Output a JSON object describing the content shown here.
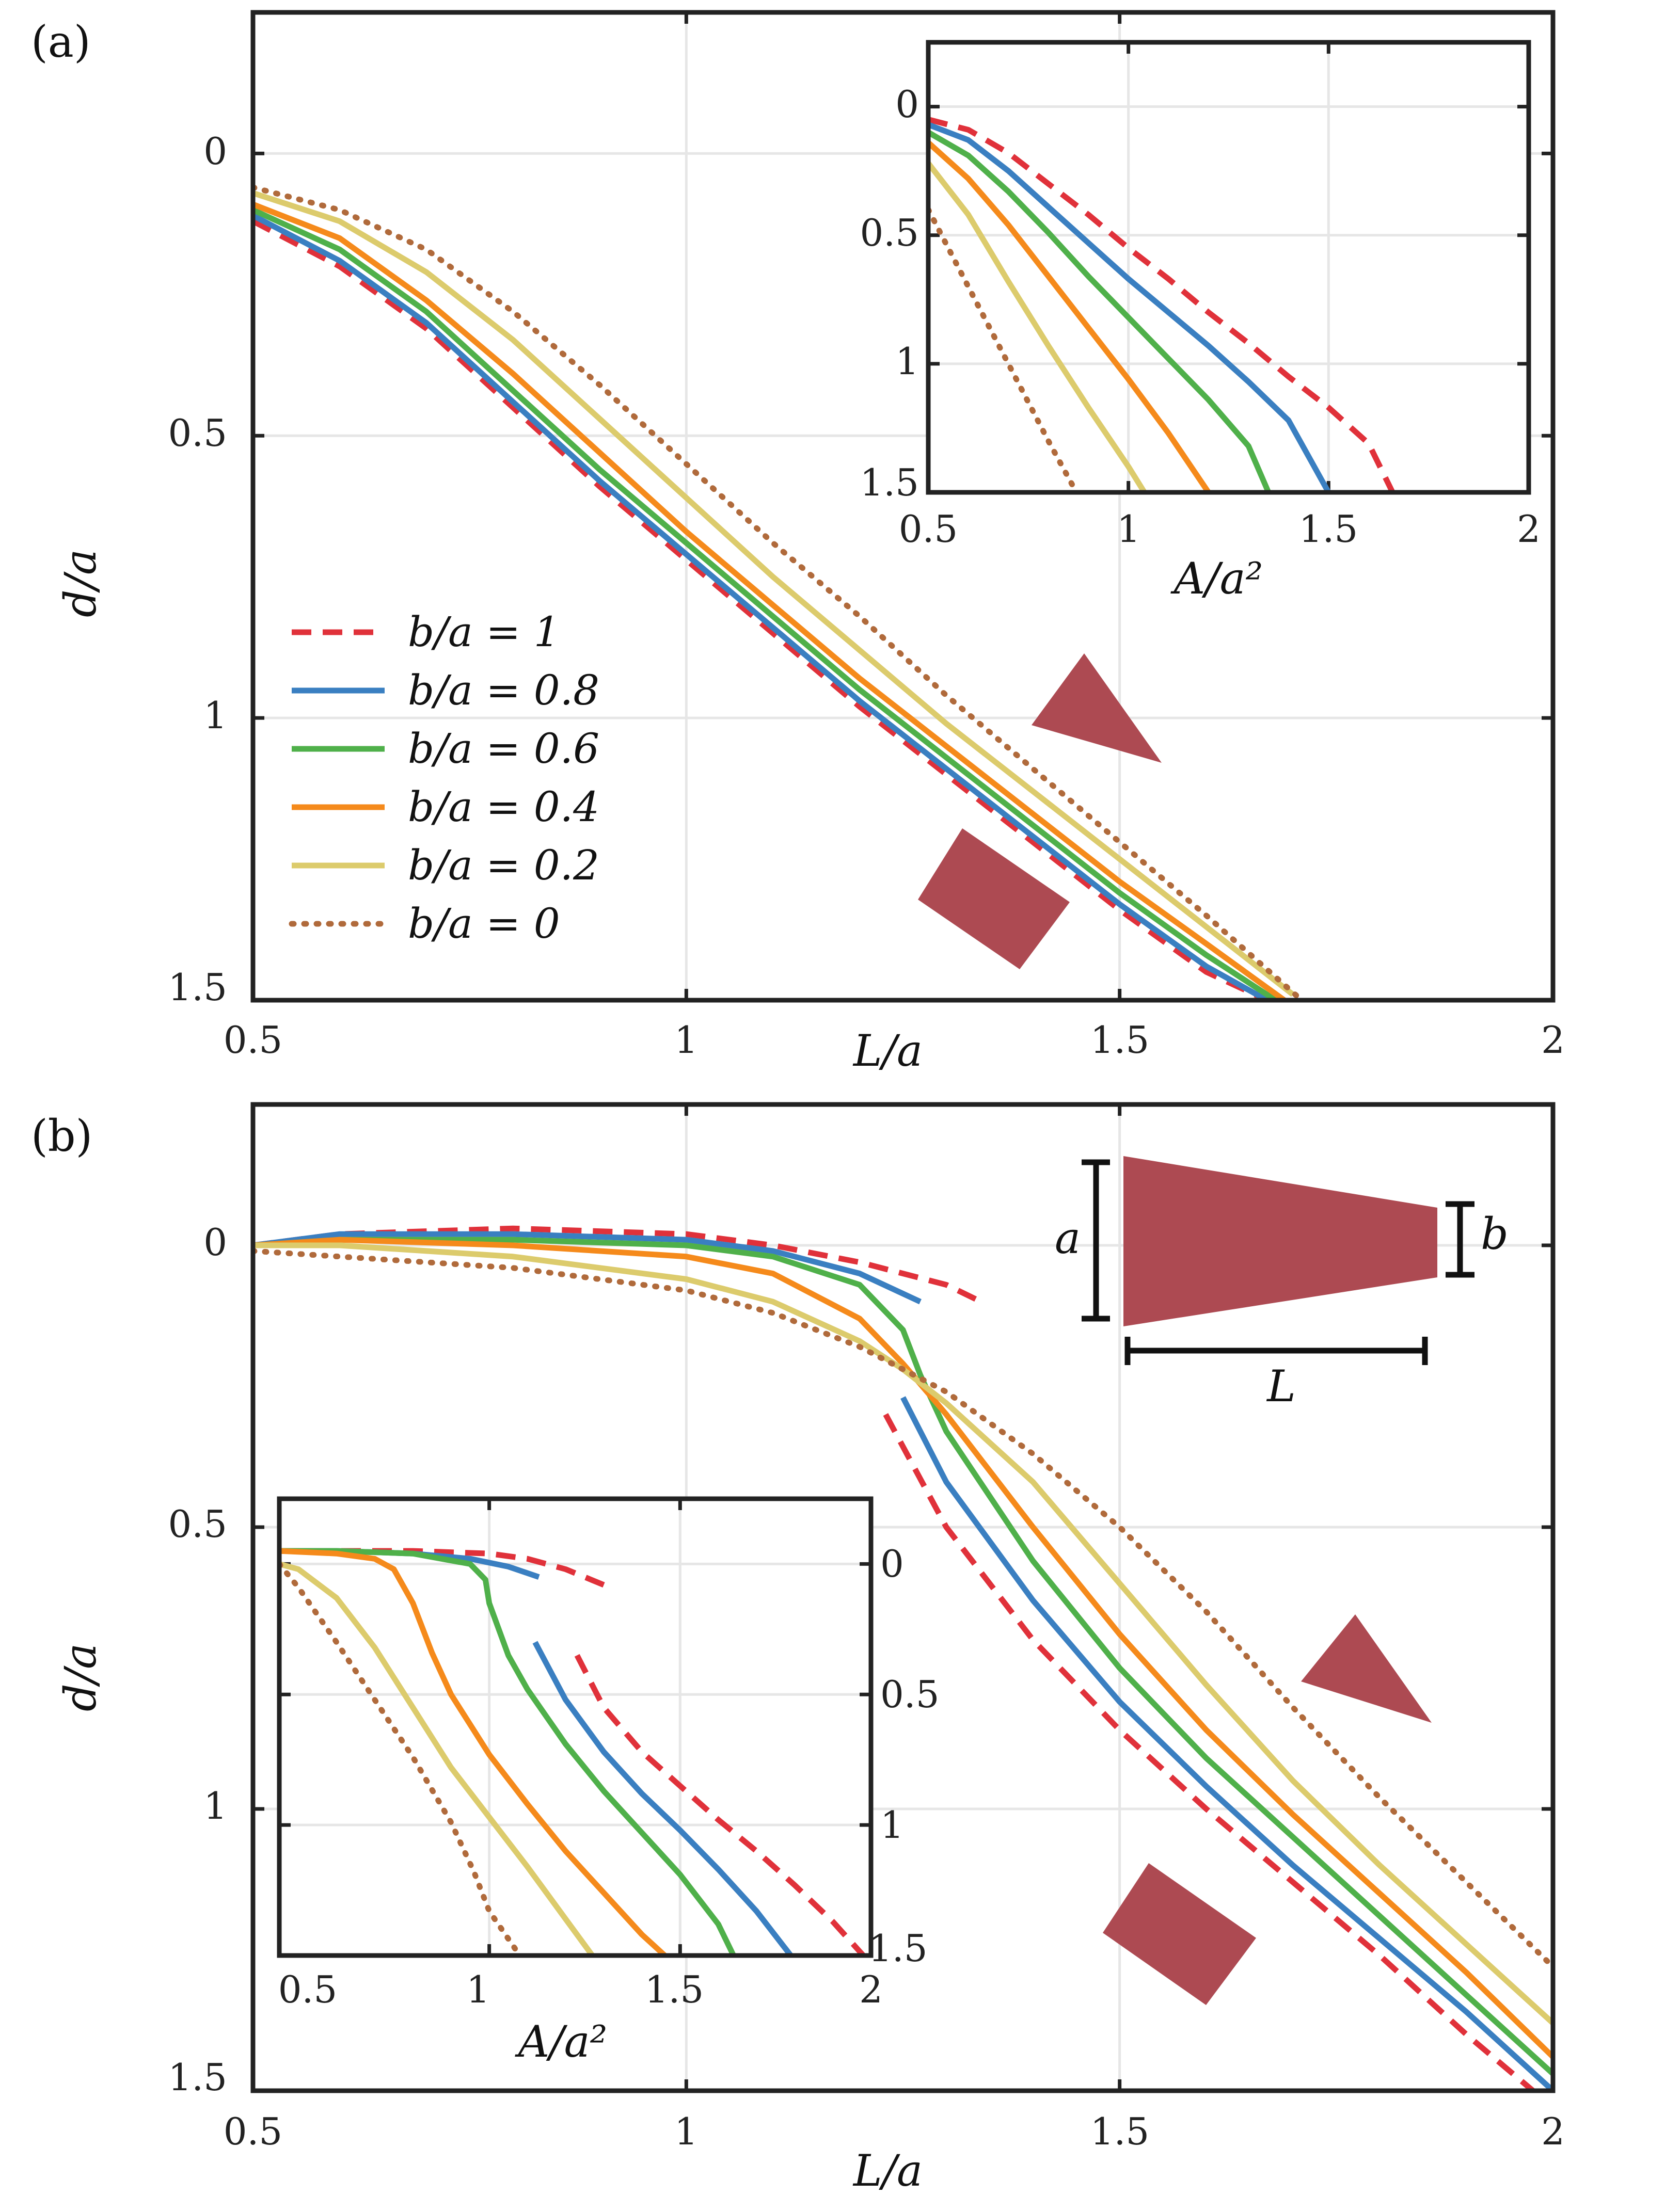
{
  "colors": {
    "b1": "#e0313a",
    "b08": "#3a7fc1",
    "b06": "#4fb04a",
    "b04": "#f58a1b",
    "b02": "#dccb6c",
    "b0": "#b06a3b",
    "shape": "#ad4a52",
    "axes": "#222222",
    "grid": "#e6e6e6"
  },
  "series_info": [
    {
      "key": "b1",
      "label": "b/a = 1",
      "style": "dashed"
    },
    {
      "key": "b08",
      "label": "b/a = 0.8",
      "style": "solid"
    },
    {
      "key": "b06",
      "label": "b/a = 0.6",
      "style": "solid"
    },
    {
      "key": "b04",
      "label": "b/a = 0.4",
      "style": "solid"
    },
    {
      "key": "b02",
      "label": "b/a = 0.2",
      "style": "solid"
    },
    {
      "key": "b0",
      "label": "b/a = 0",
      "style": "dotted"
    }
  ],
  "chart_data": [
    {
      "id": "a",
      "panel_label": "(a)",
      "type": "line",
      "xlabel": "L/a",
      "ylabel": "d/a",
      "xlim": [
        0.5,
        2
      ],
      "ylim": [
        1.5,
        -0.25
      ],
      "y_inverted": true,
      "xticks": [
        "0.5",
        "1",
        "1.5",
        "2"
      ],
      "yticks": [
        "0",
        "0.5",
        "1",
        "1.5"
      ],
      "legend_position": "lower-left",
      "series": [
        {
          "key": "b1",
          "x": [
            0.5,
            0.6,
            0.7,
            0.8,
            0.9,
            1.0,
            1.1,
            1.2,
            1.3,
            1.4,
            1.5,
            1.6,
            1.67
          ],
          "y": [
            0.12,
            0.2,
            0.31,
            0.45,
            0.59,
            0.72,
            0.85,
            0.98,
            1.1,
            1.22,
            1.34,
            1.45,
            1.5
          ]
        },
        {
          "key": "b08",
          "x": [
            0.5,
            0.6,
            0.7,
            0.8,
            0.9,
            1.0,
            1.1,
            1.2,
            1.3,
            1.4,
            1.5,
            1.6,
            1.67
          ],
          "y": [
            0.11,
            0.19,
            0.3,
            0.44,
            0.58,
            0.71,
            0.84,
            0.97,
            1.09,
            1.21,
            1.33,
            1.44,
            1.5
          ]
        },
        {
          "key": "b06",
          "x": [
            0.5,
            0.6,
            0.7,
            0.8,
            0.9,
            1.0,
            1.1,
            1.2,
            1.3,
            1.4,
            1.5,
            1.6,
            1.68
          ],
          "y": [
            0.1,
            0.17,
            0.28,
            0.42,
            0.56,
            0.69,
            0.82,
            0.95,
            1.07,
            1.19,
            1.31,
            1.42,
            1.5
          ]
        },
        {
          "key": "b04",
          "x": [
            0.5,
            0.6,
            0.7,
            0.8,
            0.9,
            1.0,
            1.1,
            1.2,
            1.3,
            1.4,
            1.5,
            1.6,
            1.69
          ],
          "y": [
            0.09,
            0.15,
            0.26,
            0.39,
            0.53,
            0.67,
            0.8,
            0.93,
            1.05,
            1.17,
            1.29,
            1.4,
            1.5
          ]
        },
        {
          "key": "b02",
          "x": [
            0.5,
            0.6,
            0.7,
            0.8,
            0.9,
            1.0,
            1.1,
            1.2,
            1.3,
            1.4,
            1.5,
            1.6,
            1.7
          ],
          "y": [
            0.07,
            0.12,
            0.21,
            0.33,
            0.47,
            0.61,
            0.75,
            0.88,
            1.01,
            1.13,
            1.25,
            1.37,
            1.49
          ]
        },
        {
          "key": "b0",
          "x": [
            0.5,
            0.6,
            0.7,
            0.8,
            0.9,
            1.0,
            1.1,
            1.2,
            1.3,
            1.4,
            1.5,
            1.6,
            1.71
          ],
          "y": [
            0.06,
            0.1,
            0.17,
            0.28,
            0.41,
            0.55,
            0.69,
            0.82,
            0.96,
            1.09,
            1.22,
            1.35,
            1.5
          ]
        }
      ],
      "inset": {
        "type": "line",
        "xlabel": "A/a²",
        "xlim": [
          0.5,
          2
        ],
        "ylim": [
          1.5,
          -0.25
        ],
        "y_inverted": true,
        "xticks": [
          "0.5",
          "1",
          "1.5",
          "2"
        ],
        "yticks": [
          "0",
          "0.5",
          "1",
          "1.5"
        ],
        "series": [
          {
            "key": "b1",
            "x": [
              0.5,
              0.6,
              0.7,
              0.8,
              0.9,
              1.0,
              1.1,
              1.2,
              1.3,
              1.4,
              1.5,
              1.6,
              1.66
            ],
            "y": [
              0.05,
              0.09,
              0.18,
              0.3,
              0.42,
              0.55,
              0.67,
              0.8,
              0.92,
              1.05,
              1.17,
              1.31,
              1.5
            ]
          },
          {
            "key": "b08",
            "x": [
              0.5,
              0.6,
              0.7,
              0.8,
              0.9,
              1.0,
              1.1,
              1.2,
              1.3,
              1.4,
              1.5
            ],
            "y": [
              0.07,
              0.13,
              0.25,
              0.39,
              0.53,
              0.67,
              0.8,
              0.93,
              1.07,
              1.22,
              1.5
            ]
          },
          {
            "key": "b06",
            "x": [
              0.5,
              0.6,
              0.7,
              0.8,
              0.9,
              1.0,
              1.1,
              1.2,
              1.3,
              1.35
            ],
            "y": [
              0.1,
              0.19,
              0.33,
              0.49,
              0.66,
              0.82,
              0.98,
              1.14,
              1.32,
              1.5
            ]
          },
          {
            "key": "b04",
            "x": [
              0.5,
              0.6,
              0.7,
              0.8,
              0.9,
              1.0,
              1.1,
              1.2
            ],
            "y": [
              0.14,
              0.28,
              0.46,
              0.66,
              0.86,
              1.06,
              1.27,
              1.5
            ]
          },
          {
            "key": "b02",
            "x": [
              0.5,
              0.6,
              0.7,
              0.8,
              0.9,
              1.0,
              1.04
            ],
            "y": [
              0.22,
              0.42,
              0.68,
              0.93,
              1.17,
              1.4,
              1.5
            ]
          },
          {
            "key": "b0",
            "x": [
              0.5,
              0.6,
              0.7,
              0.8,
              0.87
            ],
            "y": [
              0.4,
              0.7,
              1.0,
              1.3,
              1.5
            ]
          }
        ]
      }
    },
    {
      "id": "b",
      "panel_label": "(b)",
      "type": "line",
      "xlabel": "L/a",
      "ylabel": "d/a",
      "xlim": [
        0.5,
        2
      ],
      "ylim": [
        1.5,
        -0.25
      ],
      "y_inverted": true,
      "xticks": [
        "0.5",
        "1",
        "1.5",
        "2"
      ],
      "yticks": [
        "0",
        "0.5",
        "1",
        "1.5"
      ],
      "schematic_labels": {
        "a": "a",
        "b": "b",
        "L": "L"
      },
      "series": [
        {
          "key": "b1",
          "branches": [
            {
              "x": [
                0.5,
                0.6,
                0.8,
                1.0,
                1.1,
                1.2,
                1.3,
                1.34
              ],
              "y": [
                0.0,
                -0.02,
                -0.03,
                -0.02,
                0.0,
                0.03,
                0.07,
                0.1
              ]
            },
            {
              "x": [
                1.23,
                1.3,
                1.4,
                1.5,
                1.6,
                1.7,
                1.8,
                1.9,
                2.0
              ],
              "y": [
                0.3,
                0.5,
                0.7,
                0.86,
                1.0,
                1.13,
                1.26,
                1.4,
                1.53
              ]
            }
          ]
        },
        {
          "key": "b08",
          "branches": [
            {
              "x": [
                0.5,
                0.6,
                0.8,
                1.0,
                1.1,
                1.2,
                1.27
              ],
              "y": [
                0.0,
                -0.02,
                -0.02,
                -0.01,
                0.01,
                0.05,
                0.1
              ]
            },
            {
              "x": [
                1.25,
                1.3,
                1.4,
                1.5,
                1.6,
                1.7,
                1.8,
                1.9,
                2.0
              ],
              "y": [
                0.27,
                0.42,
                0.63,
                0.81,
                0.96,
                1.1,
                1.23,
                1.36,
                1.5
              ]
            }
          ]
        },
        {
          "key": "b06",
          "x": [
            0.5,
            0.6,
            0.8,
            1.0,
            1.1,
            1.2,
            1.25,
            1.27,
            1.3,
            1.4,
            1.5,
            1.6,
            1.7,
            1.8,
            1.9,
            2.0
          ],
          "y": [
            0.0,
            -0.01,
            -0.01,
            0.0,
            0.02,
            0.07,
            0.15,
            0.23,
            0.33,
            0.56,
            0.75,
            0.91,
            1.05,
            1.19,
            1.33,
            1.47
          ]
        },
        {
          "key": "b04",
          "x": [
            0.5,
            0.6,
            0.8,
            1.0,
            1.1,
            1.2,
            1.25,
            1.3,
            1.4,
            1.5,
            1.6,
            1.7,
            1.8,
            1.9,
            2.0
          ],
          "y": [
            0.0,
            -0.01,
            0.0,
            0.02,
            0.05,
            0.13,
            0.21,
            0.3,
            0.5,
            0.69,
            0.86,
            1.01,
            1.15,
            1.29,
            1.44
          ]
        },
        {
          "key": "b02",
          "x": [
            0.5,
            0.6,
            0.8,
            1.0,
            1.1,
            1.2,
            1.25,
            1.3,
            1.4,
            1.5,
            1.6,
            1.7,
            1.8,
            1.9,
            2.0
          ],
          "y": [
            0.0,
            0.0,
            0.02,
            0.06,
            0.1,
            0.17,
            0.22,
            0.28,
            0.42,
            0.6,
            0.78,
            0.95,
            1.1,
            1.24,
            1.38
          ]
        },
        {
          "key": "b0",
          "x": [
            0.5,
            0.6,
            0.8,
            1.0,
            1.1,
            1.2,
            1.3,
            1.4,
            1.5,
            1.6,
            1.7,
            1.8,
            1.9,
            2.0
          ],
          "y": [
            0.01,
            0.02,
            0.04,
            0.08,
            0.12,
            0.18,
            0.26,
            0.37,
            0.5,
            0.65,
            0.82,
            0.98,
            1.13,
            1.28
          ]
        }
      ],
      "inset": {
        "type": "line",
        "xlabel": "A/a²",
        "xlim": [
          0.45,
          2
        ],
        "ylim": [
          1.5,
          -0.25
        ],
        "y_inverted": true,
        "y_axis_side": "right",
        "xticks": [
          "0.5",
          "1",
          "1.5",
          "2"
        ],
        "yticks": [
          "0",
          "0.5",
          "1",
          "1.5"
        ],
        "series": [
          {
            "key": "b1",
            "branches": [
              {
                "x": [
                  0.45,
                  0.6,
                  0.8,
                  1.0,
                  1.1,
                  1.2,
                  1.3
                ],
                "y": [
                  -0.05,
                  -0.05,
                  -0.05,
                  -0.04,
                  -0.02,
                  0.02,
                  0.08
                ]
              },
              {
                "x": [
                  1.23,
                  1.3,
                  1.4,
                  1.5,
                  1.6,
                  1.7,
                  1.8,
                  1.9,
                  1.98
                ],
                "y": [
                  0.35,
                  0.55,
                  0.72,
                  0.85,
                  0.98,
                  1.1,
                  1.23,
                  1.37,
                  1.5
                ]
              }
            ]
          },
          {
            "key": "b08",
            "branches": [
              {
                "x": [
                  0.45,
                  0.6,
                  0.8,
                  0.95,
                  1.05,
                  1.13
                ],
                "y": [
                  -0.05,
                  -0.05,
                  -0.04,
                  -0.02,
                  0.01,
                  0.05
                ]
              },
              {
                "x": [
                  1.12,
                  1.2,
                  1.3,
                  1.4,
                  1.5,
                  1.6,
                  1.7,
                  1.79
                ],
                "y": [
                  0.3,
                  0.52,
                  0.72,
                  0.88,
                  1.02,
                  1.17,
                  1.33,
                  1.5
                ]
              }
            ]
          },
          {
            "key": "b06",
            "x": [
              0.45,
              0.6,
              0.8,
              0.95,
              0.99,
              1.0,
              1.05,
              1.1,
              1.2,
              1.3,
              1.4,
              1.5,
              1.6,
              1.64
            ],
            "y": [
              -0.05,
              -0.05,
              -0.04,
              0.0,
              0.06,
              0.15,
              0.35,
              0.48,
              0.69,
              0.87,
              1.03,
              1.19,
              1.38,
              1.5
            ]
          },
          {
            "key": "b04",
            "x": [
              0.45,
              0.6,
              0.7,
              0.75,
              0.8,
              0.85,
              0.9,
              1.0,
              1.1,
              1.2,
              1.3,
              1.4,
              1.46
            ],
            "y": [
              -0.05,
              -0.04,
              -0.02,
              0.02,
              0.15,
              0.34,
              0.5,
              0.73,
              0.92,
              1.1,
              1.26,
              1.42,
              1.5
            ]
          },
          {
            "key": "b02",
            "x": [
              0.45,
              0.5,
              0.6,
              0.7,
              0.8,
              0.9,
              1.0,
              1.1,
              1.2,
              1.27
            ],
            "y": [
              0.0,
              0.02,
              0.13,
              0.32,
              0.55,
              0.78,
              0.97,
              1.16,
              1.36,
              1.5
            ]
          },
          {
            "key": "b0",
            "x": [
              0.45,
              0.5,
              0.6,
              0.7,
              0.8,
              0.9,
              0.96,
              1.0,
              1.08
            ],
            "y": [
              0.0,
              0.09,
              0.3,
              0.52,
              0.74,
              0.99,
              1.18,
              1.33,
              1.5
            ]
          }
        ]
      }
    }
  ]
}
